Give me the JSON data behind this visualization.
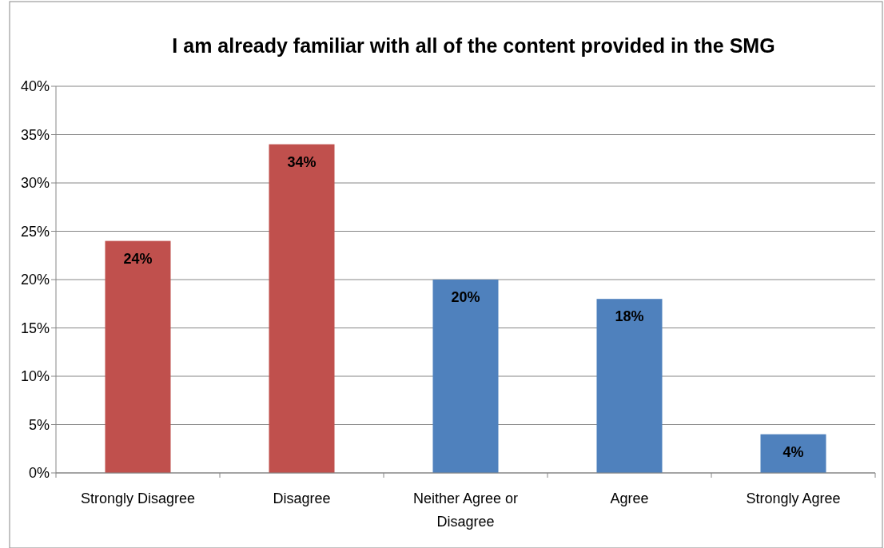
{
  "chart_data": {
    "type": "bar",
    "title": "I am already familiar with all of the content provided in the SMG",
    "categories": [
      "Strongly Disagree",
      "Disagree",
      "Neither Agree or Disagree",
      "Agree",
      "Strongly Agree"
    ],
    "values": [
      24,
      34,
      20,
      18,
      4
    ],
    "colors": [
      "#c0504d",
      "#c0504d",
      "#4f81bd",
      "#4f81bd",
      "#4f81bd"
    ],
    "value_labels": [
      "24%",
      "34%",
      "20%",
      "18%",
      "4%"
    ],
    "ylim": [
      0,
      40
    ],
    "yticks": [
      {
        "value": 0,
        "label": "0%"
      },
      {
        "value": 5,
        "label": "5%"
      },
      {
        "value": 10,
        "label": "10%"
      },
      {
        "value": 15,
        "label": "15%"
      },
      {
        "value": 20,
        "label": "20%"
      },
      {
        "value": 25,
        "label": "25%"
      },
      {
        "value": 30,
        "label": "30%"
      },
      {
        "value": 35,
        "label": "35%"
      },
      {
        "value": 40,
        "label": "40%"
      }
    ],
    "grid": "y"
  }
}
